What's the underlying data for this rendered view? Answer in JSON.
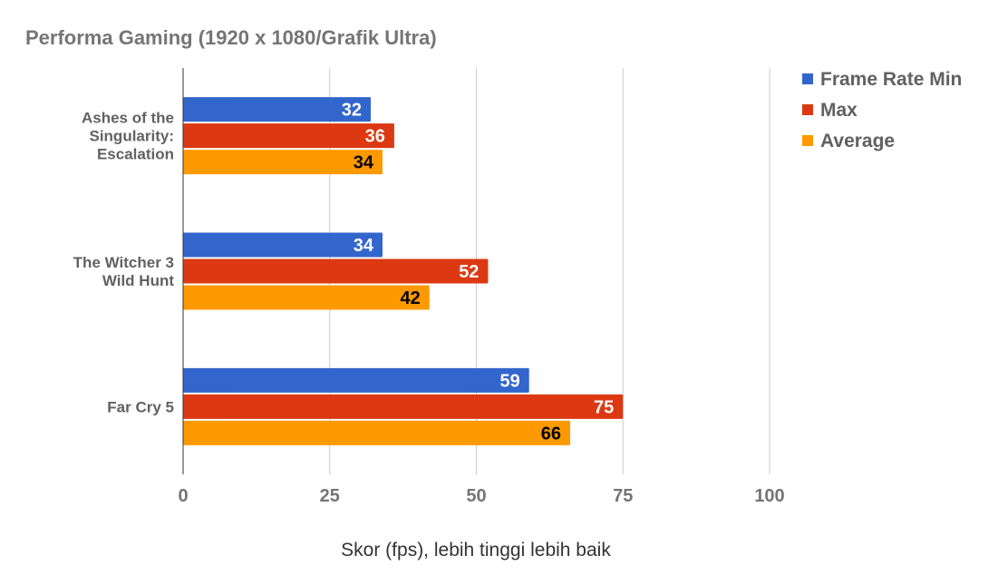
{
  "chart_data": {
    "type": "bar",
    "orientation": "horizontal",
    "title": "Performa Gaming (1920 x 1080/Grafik Ultra)",
    "xlabel": "Skor (fps), lebih tinggi lebih baik",
    "ylabel": "",
    "categories": [
      [
        "Ashes of the",
        "Singularity:",
        "Escalation"
      ],
      [
        "The Witcher 3",
        "Wild Hunt"
      ],
      [
        "Far Cry 5"
      ]
    ],
    "series": [
      {
        "name": "Frame Rate Min",
        "color": "#3366cc",
        "label_color": "#ffffff",
        "values": [
          32,
          34,
          59
        ]
      },
      {
        "name": "Max",
        "color": "#dc3912",
        "label_color": "#ffffff",
        "values": [
          36,
          52,
          75
        ]
      },
      {
        "name": "Average",
        "color": "#ff9900",
        "label_color": "#000000",
        "values": [
          34,
          42,
          66
        ]
      }
    ],
    "xlim": [
      0,
      100
    ],
    "xticks": [
      0,
      25,
      50,
      75,
      100
    ],
    "grid": true,
    "legend": "right",
    "data_labels": true
  }
}
